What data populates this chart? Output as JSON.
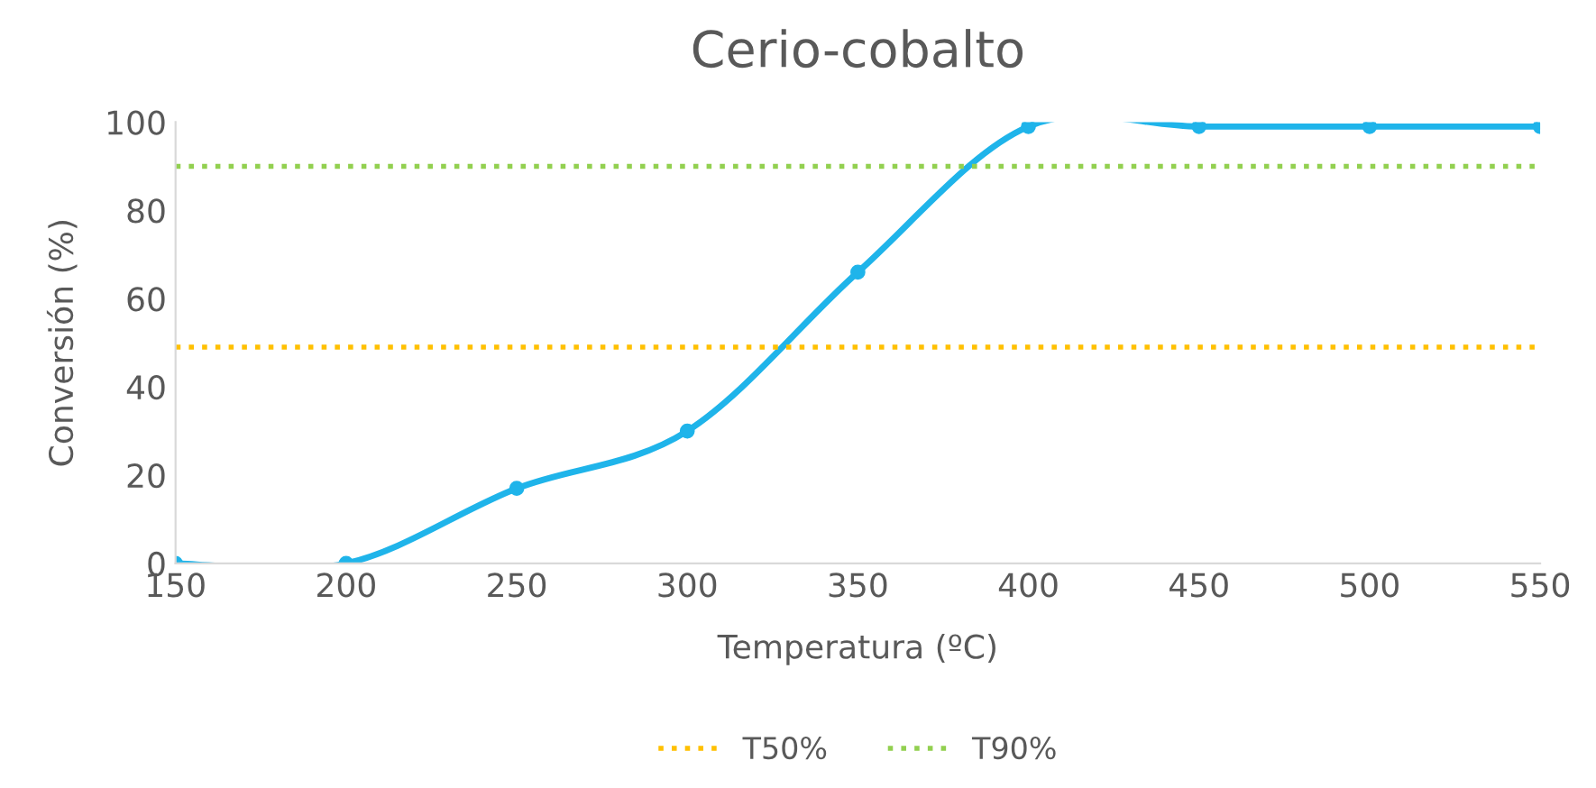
{
  "chart_data": {
    "type": "line",
    "title": "Cerio-cobalto",
    "xlabel": "Temperatura (ºC)",
    "ylabel": "Conversión (%)",
    "x": [
      150,
      200,
      250,
      300,
      350,
      400,
      450,
      500,
      550
    ],
    "series": [
      {
        "color": "#1fb4ea",
        "values": [
          0,
          0,
          17,
          30,
          66,
          99,
          99,
          99,
          99
        ]
      }
    ],
    "marker": "circle",
    "line_style": "solid",
    "xlim": [
      150,
      550
    ],
    "xticks": [
      150,
      200,
      250,
      300,
      350,
      400,
      450,
      500,
      550
    ],
    "ylim": [
      0,
      100
    ],
    "yticks": [
      0,
      20,
      40,
      60,
      80,
      100
    ],
    "ref_lines": [
      {
        "axis": "y",
        "value": 49,
        "label": "T50%",
        "color": "#ffc000",
        "line_style": "dotted"
      },
      {
        "axis": "y",
        "value": 90,
        "label": "T90%",
        "color": "#92d050",
        "line_style": "dotted"
      }
    ],
    "grid": false,
    "legend": "bottom"
  }
}
